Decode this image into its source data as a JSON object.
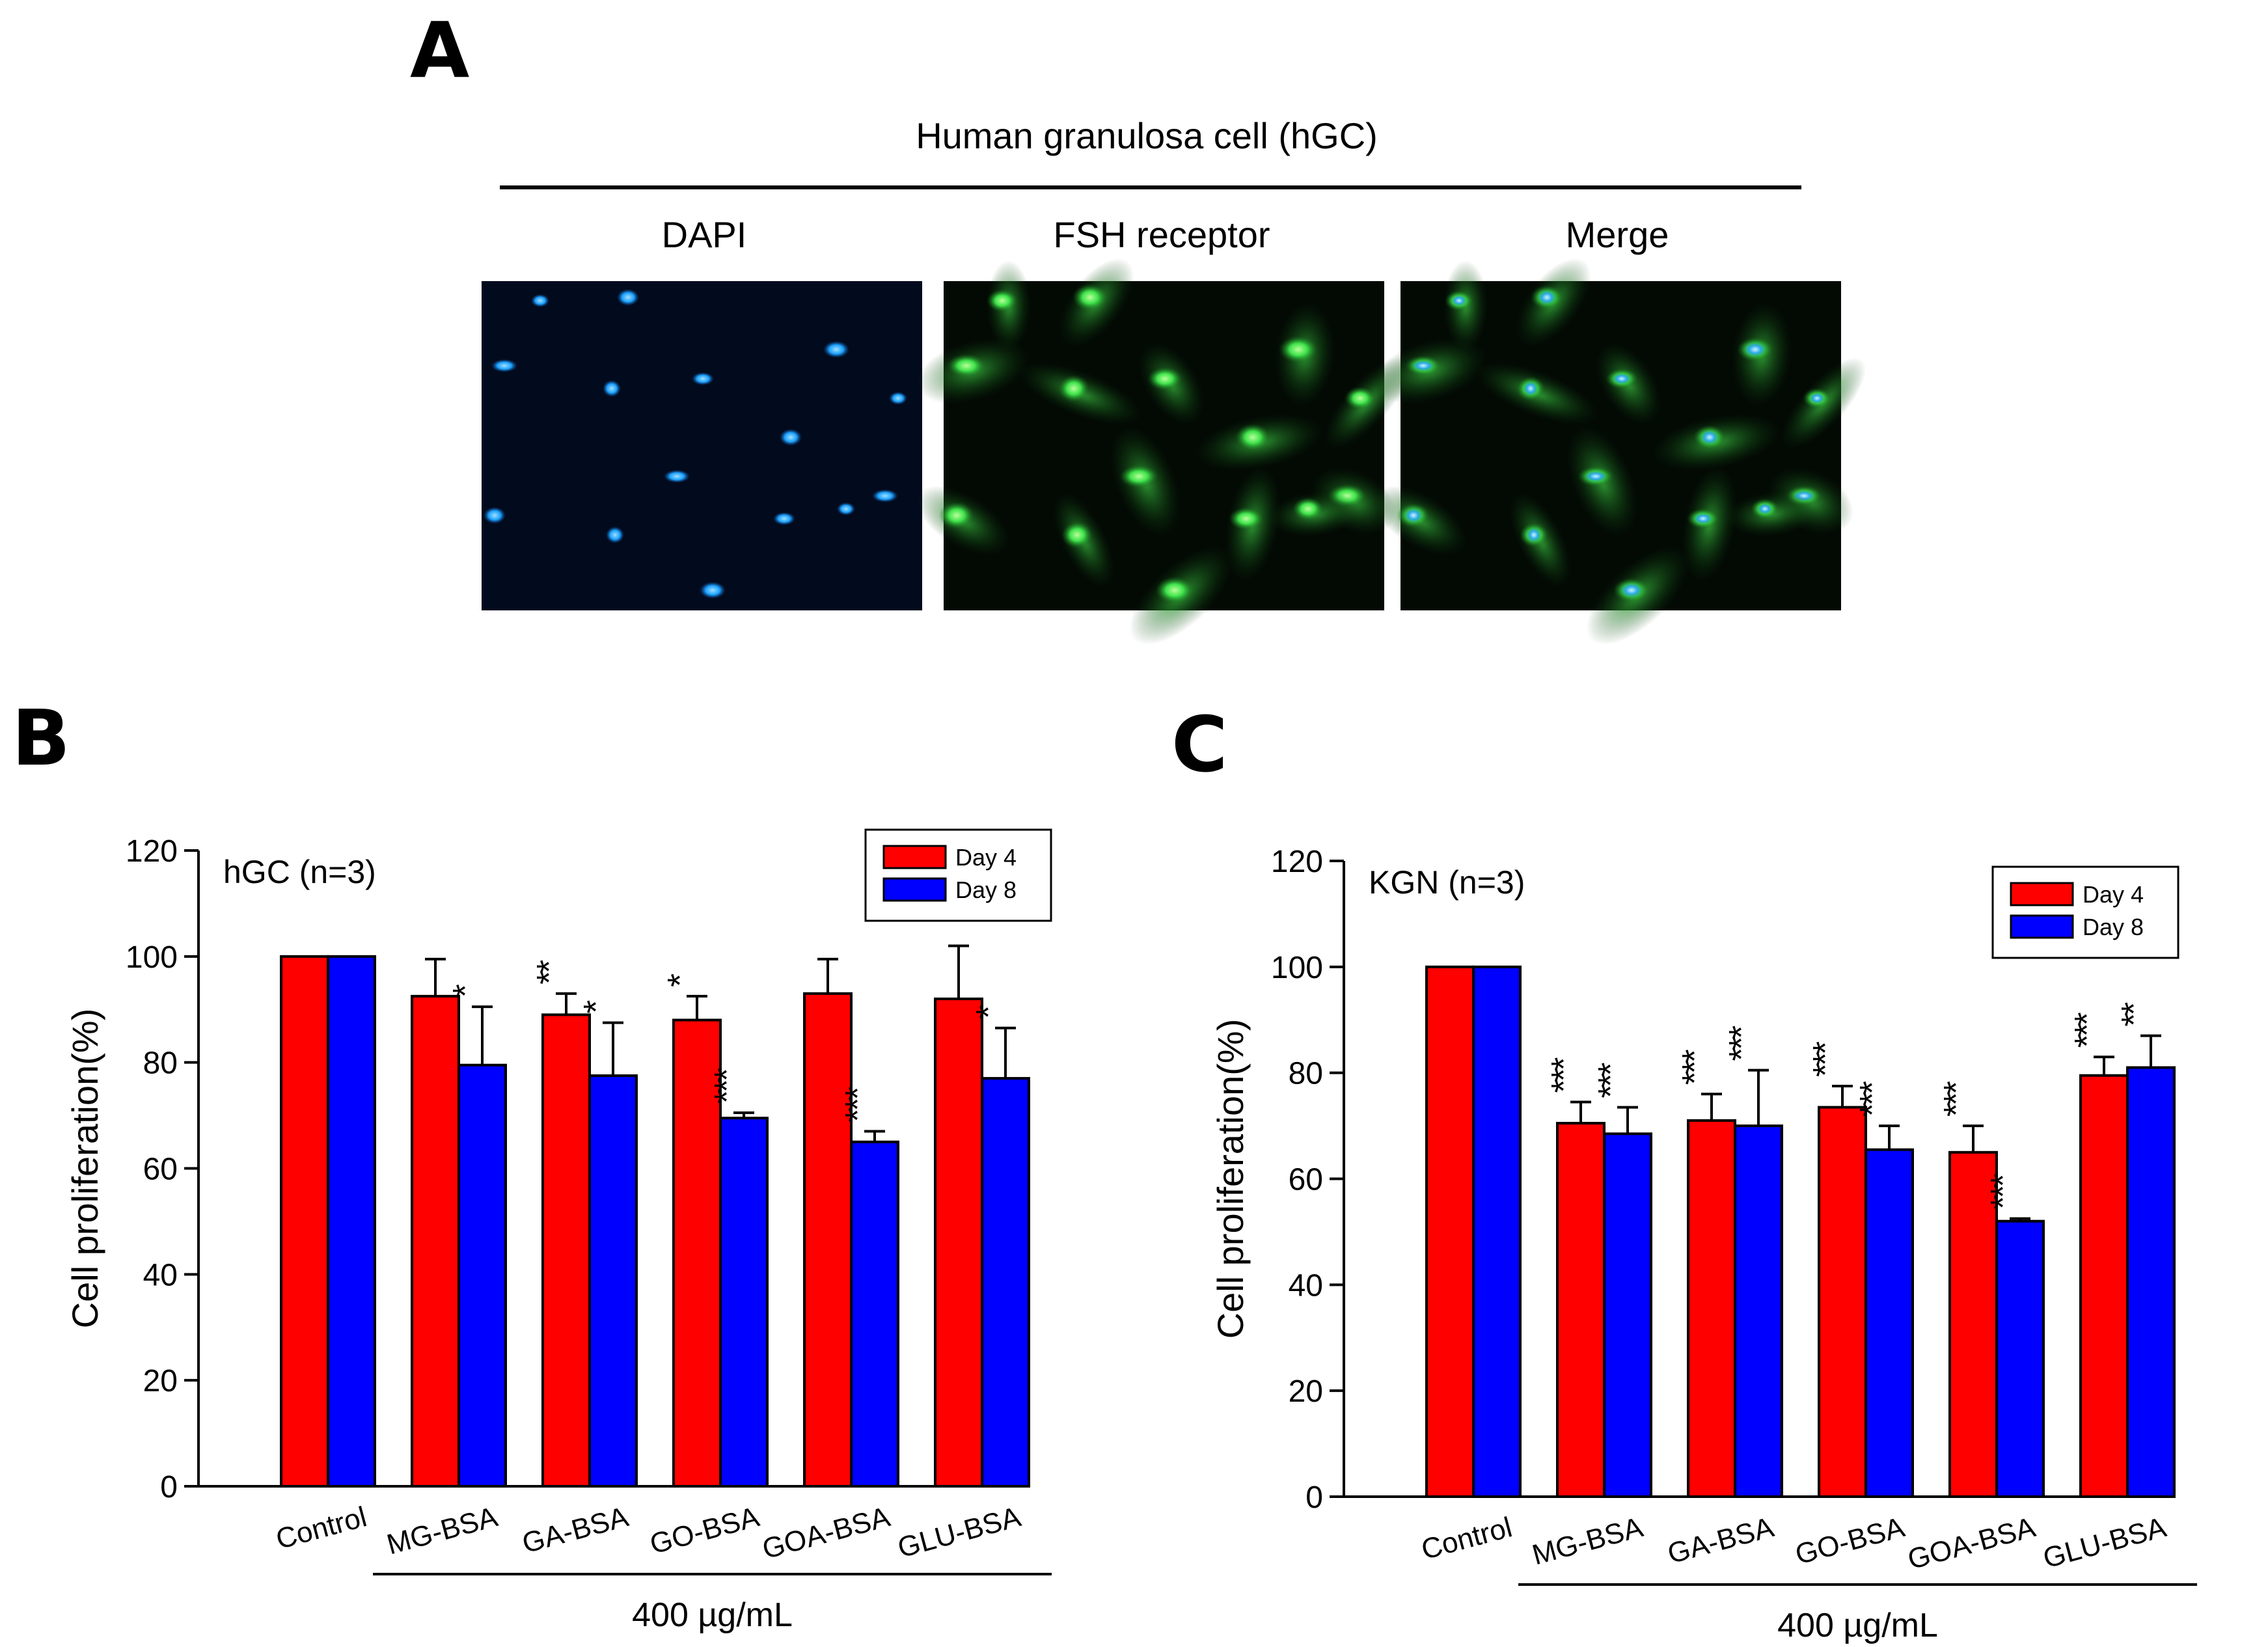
{
  "panel_a": {
    "letter": "A",
    "title": "Human granulosa cell (hGC)",
    "images": [
      {
        "label": "DAPI",
        "stain": "blue-nuclei",
        "color": "#1aa0ff"
      },
      {
        "label": "FSH receptor",
        "stain": "green-cytoplasm",
        "color": "#22cc33"
      },
      {
        "label": "Merge",
        "stain": "merged",
        "color": "#22cc33"
      }
    ]
  },
  "colors": {
    "day4": "#ff0000",
    "day8": "#0000ff"
  },
  "chart_data": [
    {
      "panel": "B",
      "type": "bar",
      "title": "hGC (n=3)",
      "ylabel": "Cell proliferation(%)",
      "xlabel": "400 µg/mL",
      "ylim": [
        0,
        120
      ],
      "yticks": [
        0,
        20,
        40,
        60,
        80,
        100,
        120
      ],
      "categories": [
        "Control",
        "MG-BSA",
        "GA-BSA",
        "GO-BSA",
        "GOA-BSA",
        "GLU-BSA"
      ],
      "series": [
        {
          "name": "Day 4",
          "values": [
            100,
            92.5,
            89,
            88,
            93,
            92
          ],
          "errors": [
            0,
            7,
            4,
            4.5,
            6.5,
            10
          ],
          "sig": [
            "",
            "",
            "**",
            "*",
            "",
            ""
          ]
        },
        {
          "name": "Day 8",
          "values": [
            100,
            79.5,
            77.5,
            69.5,
            65,
            77
          ],
          "errors": [
            0,
            11,
            10,
            1,
            2,
            9.5
          ],
          "sig": [
            "",
            "*",
            "*",
            "***",
            "***",
            "*"
          ]
        }
      ],
      "legend_position": "top-right"
    },
    {
      "panel": "C",
      "type": "bar",
      "title": "KGN (n=3)",
      "ylabel": "Cell proliferation(%)",
      "xlabel": "400 µg/mL",
      "ylim": [
        0,
        120
      ],
      "yticks": [
        0,
        20,
        40,
        60,
        80,
        100,
        120
      ],
      "categories": [
        "Control",
        "MG-BSA",
        "GA-BSA",
        "GO-BSA",
        "GOA-BSA",
        "GLU-BSA"
      ],
      "series": [
        {
          "name": "Day 4",
          "values": [
            100,
            70.5,
            71,
            73.5,
            65,
            79.5
          ],
          "errors": [
            0,
            4,
            5,
            4,
            5,
            3.5
          ],
          "sig": [
            "",
            "***",
            "***",
            "***",
            "***",
            "***"
          ]
        },
        {
          "name": "Day 8",
          "values": [
            100,
            68.5,
            70,
            65.5,
            52,
            81
          ],
          "errors": [
            0,
            5,
            10.5,
            4.5,
            0.5,
            6
          ],
          "sig": [
            "",
            "***",
            "***",
            "***",
            "***",
            "**"
          ]
        }
      ],
      "legend_position": "top-right"
    }
  ]
}
